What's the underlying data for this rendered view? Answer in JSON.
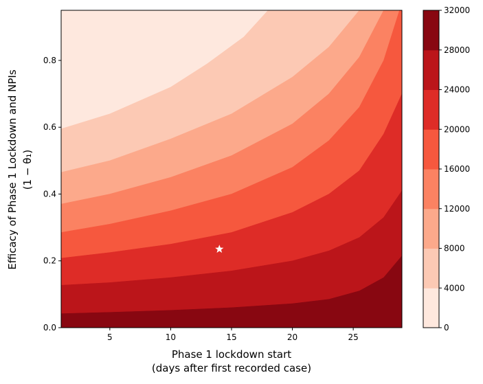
{
  "chart_data": {
    "type": "contourf",
    "colormap": "Reds",
    "x": {
      "label_line1": "Phase 1 lockdown start",
      "label_line2": "(days after first recorded case)",
      "range": [
        1,
        29
      ],
      "ticks": [
        5,
        10,
        15,
        20,
        25
      ],
      "tick_labels": [
        "5",
        "10",
        "15",
        "20",
        "25"
      ]
    },
    "y": {
      "label_line1": "Efficacy of Phase 1 Lockdown and NPIs",
      "label_line2": "(1 − θ₁)",
      "range": [
        0,
        0.95
      ],
      "ticks": [
        0.0,
        0.2,
        0.4,
        0.6,
        0.8
      ],
      "tick_labels": [
        "0.0",
        "0.2",
        "0.4",
        "0.6",
        "0.8"
      ]
    },
    "levels": [
      0,
      4000,
      8000,
      12000,
      16000,
      20000,
      24000,
      28000,
      32000
    ],
    "colorbar_tick_labels": [
      "0",
      "4000",
      "8000",
      "12000",
      "16000",
      "20000",
      "24000",
      "28000",
      "32000"
    ],
    "band_colors": [
      "#fee8de",
      "#fcc9b4",
      "#fca98b",
      "#fb8262",
      "#f6583e",
      "#de2c27",
      "#bb151a",
      "#880711"
    ],
    "contour_boundaries": [
      {
        "level": 4000,
        "points": [
          [
            1,
            0.595
          ],
          [
            5,
            0.64
          ],
          [
            10,
            0.72
          ],
          [
            13,
            0.79
          ],
          [
            16,
            0.87
          ],
          [
            18,
            0.95
          ]
        ]
      },
      {
        "level": 8000,
        "points": [
          [
            1,
            0.465
          ],
          [
            5,
            0.5
          ],
          [
            10,
            0.565
          ],
          [
            15,
            0.64
          ],
          [
            20,
            0.75
          ],
          [
            23,
            0.84
          ],
          [
            25.5,
            0.95
          ]
        ]
      },
      {
        "level": 12000,
        "points": [
          [
            1,
            0.37
          ],
          [
            5,
            0.4
          ],
          [
            10,
            0.45
          ],
          [
            15,
            0.515
          ],
          [
            20,
            0.61
          ],
          [
            23,
            0.7
          ],
          [
            25.5,
            0.81
          ],
          [
            27.5,
            0.95
          ]
        ]
      },
      {
        "level": 16000,
        "points": [
          [
            1,
            0.285
          ],
          [
            5,
            0.31
          ],
          [
            10,
            0.35
          ],
          [
            15,
            0.4
          ],
          [
            20,
            0.48
          ],
          [
            23,
            0.56
          ],
          [
            25.5,
            0.66
          ],
          [
            27.5,
            0.8
          ],
          [
            28.8,
            0.95
          ]
        ]
      },
      {
        "level": 20000,
        "points": [
          [
            1,
            0.208
          ],
          [
            5,
            0.225
          ],
          [
            10,
            0.25
          ],
          [
            15,
            0.285
          ],
          [
            20,
            0.345
          ],
          [
            23,
            0.4
          ],
          [
            25.5,
            0.47
          ],
          [
            27.5,
            0.58
          ],
          [
            29,
            0.7
          ]
        ]
      },
      {
        "level": 24000,
        "points": [
          [
            1,
            0.127
          ],
          [
            5,
            0.135
          ],
          [
            10,
            0.15
          ],
          [
            15,
            0.17
          ],
          [
            20,
            0.2
          ],
          [
            23,
            0.23
          ],
          [
            25.5,
            0.27
          ],
          [
            27.5,
            0.33
          ],
          [
            29,
            0.41
          ]
        ]
      },
      {
        "level": 28000,
        "points": [
          [
            1,
            0.042
          ],
          [
            5,
            0.046
          ],
          [
            10,
            0.052
          ],
          [
            15,
            0.06
          ],
          [
            20,
            0.072
          ],
          [
            23,
            0.085
          ],
          [
            25.5,
            0.11
          ],
          [
            27.5,
            0.15
          ],
          [
            29,
            0.215
          ]
        ]
      }
    ],
    "marker": {
      "symbol": "star",
      "x": 14,
      "y": 0.235,
      "color": "#ffffff"
    }
  }
}
